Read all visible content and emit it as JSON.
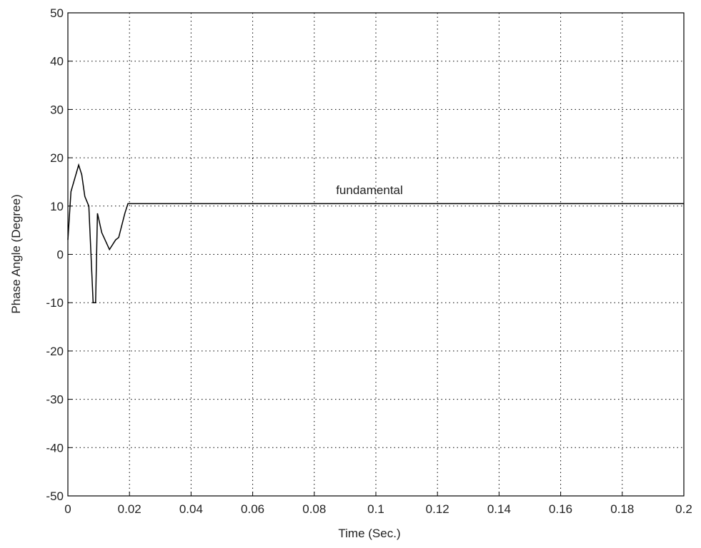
{
  "chart_data": {
    "type": "line",
    "x_label": "Time (Sec.)",
    "y_label": "Phase Angle (Degree)",
    "annotation": "fundamental",
    "x": [
      0,
      0.001,
      0.0035,
      0.0045,
      0.0055,
      0.0068,
      0.0075,
      0.0082,
      0.009,
      0.0096,
      0.011,
      0.0135,
      0.0155,
      0.0165,
      0.0185,
      0.0195,
      0.2
    ],
    "series": [
      {
        "name": "fundamental",
        "color": "#000000",
        "values": [
          3,
          13,
          18.5,
          16.5,
          12,
          10,
          0,
          -10,
          -10,
          8.5,
          4.5,
          1,
          3,
          3.5,
          8.5,
          10.5,
          10.5
        ]
      }
    ],
    "xlim": [
      0,
      0.2
    ],
    "xticks": [
      0,
      0.02,
      0.04,
      0.06,
      0.08,
      0.1,
      0.12,
      0.14,
      0.16,
      0.18,
      0.2
    ],
    "ylim": [
      -50,
      50
    ],
    "yticks": [
      -50,
      -40,
      -30,
      -20,
      -10,
      0,
      10,
      20,
      30,
      40,
      50
    ],
    "grid": true
  }
}
